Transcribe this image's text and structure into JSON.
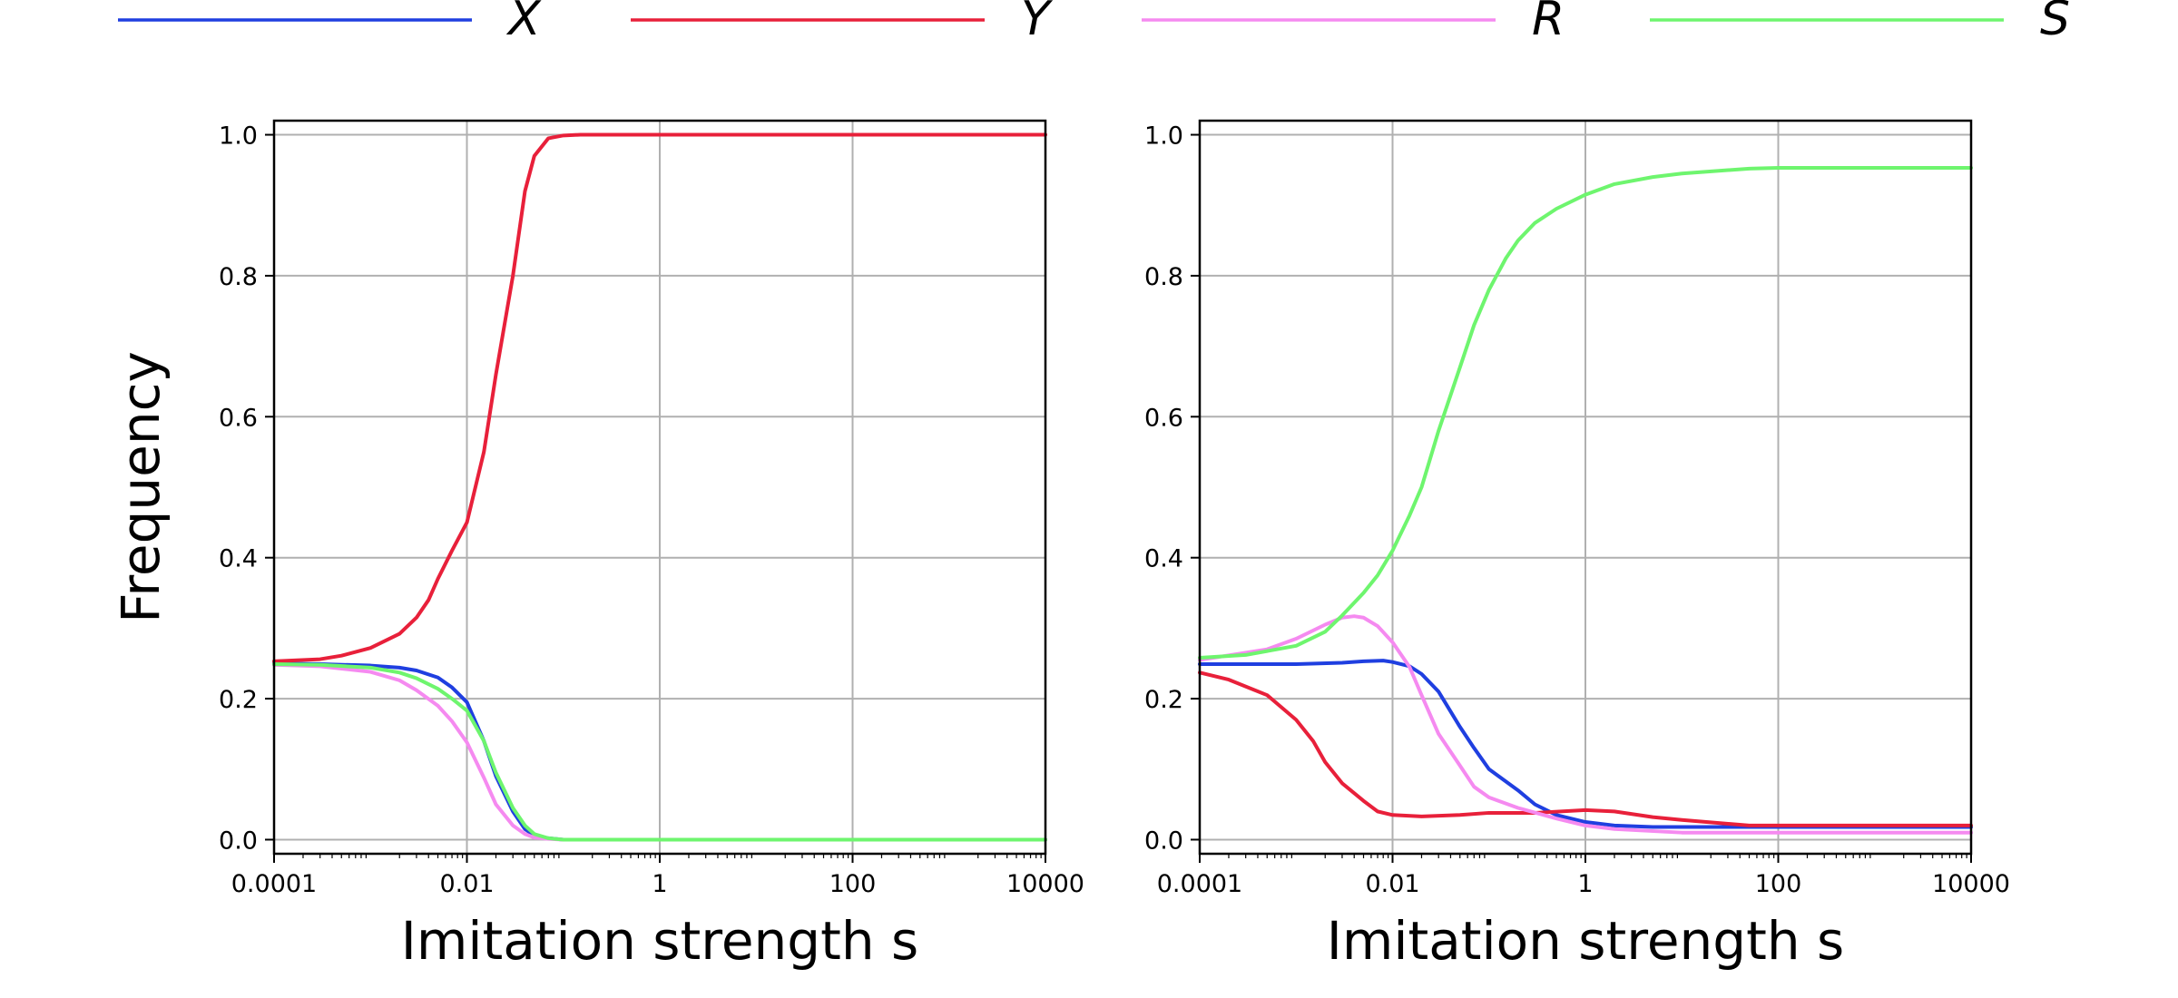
{
  "legend": [
    {
      "name": "X",
      "color": "#1f3fe0"
    },
    {
      "name": "Y",
      "color": "#e8203a"
    },
    {
      "name": "R",
      "color": "#f58af0"
    },
    {
      "name": "S",
      "color": "#6ef56e"
    }
  ],
  "chart_data": [
    {
      "type": "line",
      "title": "",
      "xlabel": "Imitation strength s",
      "ylabel": "Frequency",
      "xscale": "log",
      "xlim": [
        0.0001,
        10000
      ],
      "ylim": [
        -0.02,
        1.02
      ],
      "xticks": [
        0.0001,
        0.01,
        1,
        100,
        10000
      ],
      "xtick_labels": [
        "0.0001",
        "0.01",
        "1",
        "100",
        "10000"
      ],
      "yticks": [
        0.0,
        0.2,
        0.4,
        0.6,
        0.8,
        1.0
      ],
      "ytick_labels": [
        "0.0",
        "0.2",
        "0.4",
        "0.6",
        "0.8",
        "1.0"
      ],
      "grid": true,
      "series": [
        {
          "name": "X",
          "color": "#1f3fe0",
          "x": [
            0.0001,
            0.0003,
            0.001,
            0.002,
            0.003,
            0.005,
            0.007,
            0.01,
            0.015,
            0.02,
            0.03,
            0.04,
            0.05,
            0.07,
            0.1,
            0.2,
            0.5,
            1,
            10,
            100,
            1000,
            10000
          ],
          "y": [
            0.25,
            0.249,
            0.247,
            0.244,
            0.24,
            0.23,
            0.216,
            0.195,
            0.14,
            0.09,
            0.04,
            0.015,
            0.006,
            0.002,
            0.0,
            0.0,
            0.0,
            0.0,
            0.0,
            0.0,
            0.0,
            0.0
          ]
        },
        {
          "name": "Y",
          "color": "#e8203a",
          "x": [
            0.0001,
            0.0003,
            0.0005,
            0.001,
            0.002,
            0.003,
            0.004,
            0.005,
            0.007,
            0.01,
            0.015,
            0.02,
            0.03,
            0.04,
            0.05,
            0.07,
            0.1,
            0.15,
            0.2,
            1,
            10,
            100,
            1000,
            10000
          ],
          "y": [
            0.253,
            0.256,
            0.261,
            0.272,
            0.292,
            0.315,
            0.34,
            0.37,
            0.41,
            0.45,
            0.55,
            0.66,
            0.8,
            0.92,
            0.97,
            0.995,
            0.999,
            1.0,
            1.0,
            1.0,
            1.0,
            1.0,
            1.0,
            1.0
          ]
        },
        {
          "name": "R",
          "color": "#f58af0",
          "x": [
            0.0001,
            0.0003,
            0.001,
            0.002,
            0.003,
            0.005,
            0.007,
            0.01,
            0.015,
            0.02,
            0.03,
            0.04,
            0.05,
            0.07,
            0.1,
            0.2,
            0.5,
            1,
            10,
            100,
            1000,
            10000
          ],
          "y": [
            0.248,
            0.246,
            0.238,
            0.226,
            0.212,
            0.19,
            0.168,
            0.138,
            0.088,
            0.05,
            0.02,
            0.008,
            0.003,
            0.001,
            0.0,
            0.0,
            0.0,
            0.0,
            0.0,
            0.0,
            0.0,
            0.0
          ]
        },
        {
          "name": "S",
          "color": "#6ef56e",
          "x": [
            0.0001,
            0.0003,
            0.001,
            0.002,
            0.003,
            0.005,
            0.007,
            0.01,
            0.015,
            0.02,
            0.03,
            0.04,
            0.05,
            0.07,
            0.1,
            0.2,
            0.5,
            1,
            10,
            100,
            1000,
            10000
          ],
          "y": [
            0.249,
            0.248,
            0.244,
            0.237,
            0.229,
            0.214,
            0.2,
            0.183,
            0.14,
            0.095,
            0.045,
            0.02,
            0.008,
            0.002,
            0.0,
            0.0,
            0.0,
            0.0,
            0.0,
            0.0,
            0.0,
            0.0
          ]
        }
      ]
    },
    {
      "type": "line",
      "title": "",
      "xlabel": "Imitation strength s",
      "ylabel": "",
      "xscale": "log",
      "xlim": [
        0.0001,
        10000
      ],
      "ylim": [
        -0.02,
        1.02
      ],
      "xticks": [
        0.0001,
        0.01,
        1,
        100,
        10000
      ],
      "xtick_labels": [
        "0.0001",
        "0.01",
        "1",
        "100",
        "10000"
      ],
      "yticks": [
        0.0,
        0.2,
        0.4,
        0.6,
        0.8,
        1.0
      ],
      "ytick_labels": [
        "0.0",
        "0.2",
        "0.4",
        "0.6",
        "0.8",
        "1.0"
      ],
      "grid": true,
      "series": [
        {
          "name": "X",
          "color": "#1f3fe0",
          "x": [
            0.0001,
            0.001,
            0.003,
            0.005,
            0.008,
            0.01,
            0.015,
            0.02,
            0.03,
            0.05,
            0.07,
            0.1,
            0.2,
            0.3,
            0.5,
            1,
            2,
            5,
            10,
            100,
            1000,
            10000
          ],
          "y": [
            0.249,
            0.249,
            0.251,
            0.253,
            0.254,
            0.252,
            0.246,
            0.235,
            0.21,
            0.16,
            0.13,
            0.1,
            0.07,
            0.05,
            0.035,
            0.025,
            0.02,
            0.018,
            0.018,
            0.018,
            0.018,
            0.018
          ]
        },
        {
          "name": "Y",
          "color": "#e8203a",
          "x": [
            0.0001,
            0.0002,
            0.0005,
            0.001,
            0.0015,
            0.002,
            0.003,
            0.005,
            0.007,
            0.01,
            0.02,
            0.05,
            0.1,
            0.3,
            1,
            2,
            5,
            10,
            50,
            100,
            1000,
            10000
          ],
          "y": [
            0.237,
            0.227,
            0.205,
            0.17,
            0.14,
            0.11,
            0.08,
            0.055,
            0.04,
            0.035,
            0.033,
            0.035,
            0.038,
            0.038,
            0.042,
            0.04,
            0.032,
            0.028,
            0.02,
            0.02,
            0.02,
            0.02
          ]
        },
        {
          "name": "R",
          "color": "#f58af0",
          "x": [
            0.0001,
            0.0005,
            0.001,
            0.002,
            0.003,
            0.004,
            0.005,
            0.007,
            0.01,
            0.015,
            0.02,
            0.03,
            0.05,
            0.07,
            0.1,
            0.2,
            0.5,
            1,
            2,
            10,
            100,
            1000,
            10000
          ],
          "y": [
            0.255,
            0.27,
            0.285,
            0.305,
            0.315,
            0.317,
            0.315,
            0.303,
            0.28,
            0.245,
            0.205,
            0.15,
            0.105,
            0.075,
            0.06,
            0.045,
            0.03,
            0.02,
            0.015,
            0.01,
            0.01,
            0.01,
            0.01
          ]
        },
        {
          "name": "S",
          "color": "#6ef56e",
          "x": [
            0.0001,
            0.0003,
            0.001,
            0.002,
            0.003,
            0.005,
            0.007,
            0.01,
            0.015,
            0.02,
            0.03,
            0.05,
            0.07,
            0.1,
            0.15,
            0.2,
            0.3,
            0.5,
            1,
            2,
            5,
            10,
            50,
            100,
            1000,
            10000
          ],
          "y": [
            0.258,
            0.262,
            0.275,
            0.295,
            0.318,
            0.35,
            0.375,
            0.41,
            0.46,
            0.5,
            0.58,
            0.67,
            0.73,
            0.78,
            0.825,
            0.85,
            0.875,
            0.895,
            0.915,
            0.93,
            0.94,
            0.945,
            0.952,
            0.953,
            0.953,
            0.953
          ]
        }
      ]
    }
  ]
}
